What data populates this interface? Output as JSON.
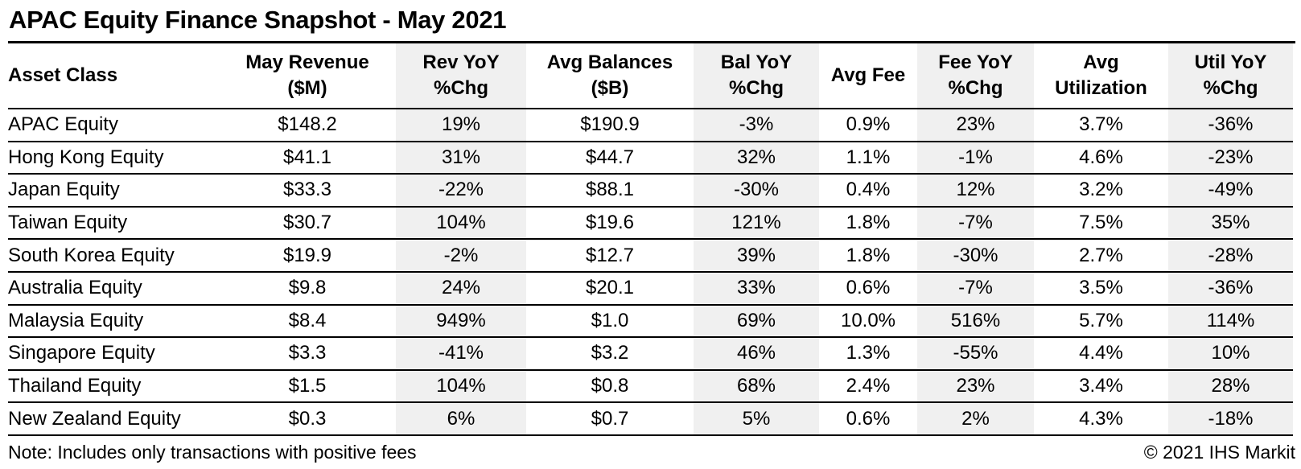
{
  "title": "APAC Equity Finance Snapshot - May 2021",
  "colors": {
    "shaded_column_bg": "#f0f0f0",
    "text": "#000000",
    "border": "#000000",
    "background": "#ffffff"
  },
  "table": {
    "columns": [
      {
        "id": "asset_class",
        "line1": "Asset Class",
        "line2": "",
        "shaded": false,
        "align": "left"
      },
      {
        "id": "may_revenue",
        "line1": "May Revenue",
        "line2": "($M)",
        "shaded": false,
        "align": "center"
      },
      {
        "id": "rev_yoy",
        "line1": "Rev YoY",
        "line2": "%Chg",
        "shaded": true,
        "align": "center"
      },
      {
        "id": "avg_balances",
        "line1": "Avg Balances",
        "line2": "($B)",
        "shaded": false,
        "align": "center"
      },
      {
        "id": "bal_yoy",
        "line1": "Bal YoY",
        "line2": "%Chg",
        "shaded": true,
        "align": "center"
      },
      {
        "id": "avg_fee",
        "line1": "Avg Fee",
        "line2": "",
        "shaded": false,
        "align": "center"
      },
      {
        "id": "fee_yoy",
        "line1": "Fee YoY",
        "line2": "%Chg",
        "shaded": true,
        "align": "center"
      },
      {
        "id": "avg_utilization",
        "line1": "Avg",
        "line2": "Utilization",
        "shaded": false,
        "align": "center"
      },
      {
        "id": "util_yoy",
        "line1": "Util YoY",
        "line2": "%Chg",
        "shaded": true,
        "align": "center"
      }
    ],
    "rows": [
      [
        "APAC Equity",
        "$148.2",
        "19%",
        "$190.9",
        "-3%",
        "0.9%",
        "23%",
        "3.7%",
        "-36%"
      ],
      [
        "Hong Kong Equity",
        "$41.1",
        "31%",
        "$44.7",
        "32%",
        "1.1%",
        "-1%",
        "4.6%",
        "-23%"
      ],
      [
        "Japan Equity",
        "$33.3",
        "-22%",
        "$88.1",
        "-30%",
        "0.4%",
        "12%",
        "3.2%",
        "-49%"
      ],
      [
        "Taiwan Equity",
        "$30.7",
        "104%",
        "$19.6",
        "121%",
        "1.8%",
        "-7%",
        "7.5%",
        "35%"
      ],
      [
        "South Korea Equity",
        "$19.9",
        "-2%",
        "$12.7",
        "39%",
        "1.8%",
        "-30%",
        "2.7%",
        "-28%"
      ],
      [
        "Australia Equity",
        "$9.8",
        "24%",
        "$20.1",
        "33%",
        "0.6%",
        "-7%",
        "3.5%",
        "-36%"
      ],
      [
        "Malaysia Equity",
        "$8.4",
        "949%",
        "$1.0",
        "69%",
        "10.0%",
        "516%",
        "5.7%",
        "114%"
      ],
      [
        "Singapore Equity",
        "$3.3",
        "-41%",
        "$3.2",
        "46%",
        "1.3%",
        "-55%",
        "4.4%",
        "10%"
      ],
      [
        "Thailand Equity",
        "$1.5",
        "104%",
        "$0.8",
        "68%",
        "2.4%",
        "23%",
        "3.4%",
        "28%"
      ],
      [
        "New Zealand Equity",
        "$0.3",
        "6%",
        "$0.7",
        "5%",
        "0.6%",
        "2%",
        "4.3%",
        "-18%"
      ]
    ]
  },
  "footer": {
    "note": "Note: Includes only transactions with positive fees",
    "copyright": "© 2021 IHS Markit"
  },
  "chart_data": {
    "type": "table",
    "title": "APAC Equity Finance Snapshot - May 2021",
    "columns": [
      "Asset Class",
      "May Revenue ($M)",
      "Rev YoY %Chg",
      "Avg Balances ($B)",
      "Bal YoY %Chg",
      "Avg Fee",
      "Fee YoY %Chg",
      "Avg Utilization",
      "Util YoY %Chg"
    ],
    "rows": [
      [
        "APAC Equity",
        "$148.2",
        "19%",
        "$190.9",
        "-3%",
        "0.9%",
        "23%",
        "3.7%",
        "-36%"
      ],
      [
        "Hong Kong Equity",
        "$41.1",
        "31%",
        "$44.7",
        "32%",
        "1.1%",
        "-1%",
        "4.6%",
        "-23%"
      ],
      [
        "Japan Equity",
        "$33.3",
        "-22%",
        "$88.1",
        "-30%",
        "0.4%",
        "12%",
        "3.2%",
        "-49%"
      ],
      [
        "Taiwan Equity",
        "$30.7",
        "104%",
        "$19.6",
        "121%",
        "1.8%",
        "-7%",
        "7.5%",
        "35%"
      ],
      [
        "South Korea Equity",
        "$19.9",
        "-2%",
        "$12.7",
        "39%",
        "1.8%",
        "-30%",
        "2.7%",
        "-28%"
      ],
      [
        "Australia Equity",
        "$9.8",
        "24%",
        "$20.1",
        "33%",
        "0.6%",
        "-7%",
        "3.5%",
        "-36%"
      ],
      [
        "Malaysia Equity",
        "$8.4",
        "949%",
        "$1.0",
        "69%",
        "10.0%",
        "516%",
        "5.7%",
        "114%"
      ],
      [
        "Singapore Equity",
        "$3.3",
        "-41%",
        "$3.2",
        "46%",
        "1.3%",
        "-55%",
        "4.4%",
        "10%"
      ],
      [
        "Thailand Equity",
        "$1.5",
        "104%",
        "$0.8",
        "68%",
        "2.4%",
        "23%",
        "3.4%",
        "28%"
      ],
      [
        "New Zealand Equity",
        "$0.3",
        "6%",
        "$0.7",
        "5%",
        "0.6%",
        "2%",
        "4.3%",
        "-18%"
      ]
    ],
    "note": "Note: Includes only transactions with positive fees",
    "source": "© 2021 IHS Markit",
    "layout_hints": {
      "shaded_columns": [
        "Rev YoY %Chg",
        "Bal YoY %Chg",
        "Fee YoY %Chg",
        "Util YoY %Chg"
      ],
      "gridlines": "horizontal-only",
      "numeric_alignment": "center"
    }
  }
}
